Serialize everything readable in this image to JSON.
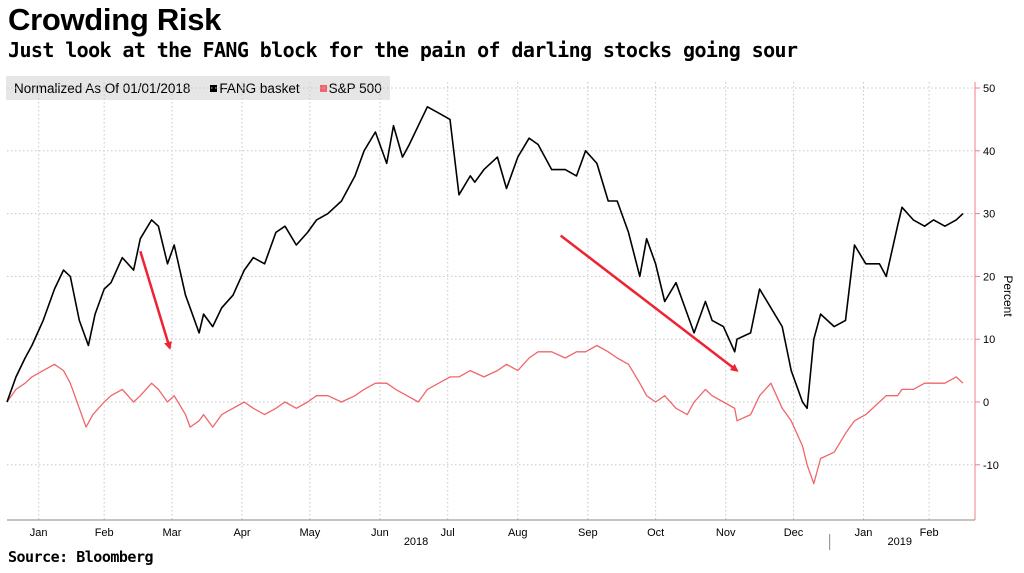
{
  "title": "Crowding Risk",
  "subtitle": "Just look at the FANG block for the pain of darling stocks going sour",
  "legend": {
    "normalized_label": "Normalized As Of 01/01/2018",
    "fang_label": "FANG basket",
    "sp_label": "S&P 500"
  },
  "source": "Source:  Bloomberg",
  "colors": {
    "fang": "#000000",
    "sp": "#f0666a",
    "arrow": "#ee2233",
    "grid": "#c8c8c8",
    "axis": "#f08080"
  },
  "chart_data": {
    "type": "line",
    "title": "Crowding Risk",
    "subtitle": "Just look at the FANG block for the pain of darling stocks going sour",
    "ylabel": "Percent",
    "ylim": [
      -18,
      53
    ],
    "y_ticks": [
      -10,
      0,
      10,
      20,
      30,
      40,
      50
    ],
    "x_range": [
      "2018-01-01",
      "2019-02-28"
    ],
    "month_ticks": [
      {
        "label": "Jan",
        "date": "2018-01-15"
      },
      {
        "label": "Feb",
        "date": "2018-02-13"
      },
      {
        "label": "Mar",
        "date": "2018-03-15"
      },
      {
        "label": "Apr",
        "date": "2018-04-15"
      },
      {
        "label": "May",
        "date": "2018-05-15"
      },
      {
        "label": "Jun",
        "date": "2018-06-15"
      },
      {
        "label": "Jul",
        "date": "2018-07-15"
      },
      {
        "label": "Aug",
        "date": "2018-08-15"
      },
      {
        "label": "Sep",
        "date": "2018-09-15"
      },
      {
        "label": "Oct",
        "date": "2018-10-15"
      },
      {
        "label": "Nov",
        "date": "2018-11-15"
      },
      {
        "label": "Dec",
        "date": "2018-12-15"
      },
      {
        "label": "Jan",
        "date": "2019-01-15"
      },
      {
        "label": "Feb",
        "date": "2019-02-13"
      }
    ],
    "year_labels": [
      {
        "label": "2018",
        "date": "2018-07-01"
      },
      {
        "label": "2019",
        "date": "2019-01-31"
      }
    ],
    "year_divider": "2018-12-31",
    "grid": true,
    "series": [
      {
        "name": "FANG basket",
        "x": [
          "2018-01-01",
          "2018-01-05",
          "2018-01-09",
          "2018-01-12",
          "2018-01-17",
          "2018-01-22",
          "2018-01-26",
          "2018-01-29",
          "2018-02-02",
          "2018-02-06",
          "2018-02-09",
          "2018-02-13",
          "2018-02-16",
          "2018-02-21",
          "2018-02-26",
          "2018-03-01",
          "2018-03-06",
          "2018-03-09",
          "2018-03-13",
          "2018-03-16",
          "2018-03-21",
          "2018-03-23",
          "2018-03-27",
          "2018-03-29",
          "2018-04-02",
          "2018-04-06",
          "2018-04-11",
          "2018-04-16",
          "2018-04-20",
          "2018-04-25",
          "2018-04-30",
          "2018-05-04",
          "2018-05-09",
          "2018-05-14",
          "2018-05-18",
          "2018-05-23",
          "2018-05-29",
          "2018-06-04",
          "2018-06-08",
          "2018-06-13",
          "2018-06-18",
          "2018-06-21",
          "2018-06-25",
          "2018-06-28",
          "2018-07-02",
          "2018-07-06",
          "2018-07-11",
          "2018-07-16",
          "2018-07-20",
          "2018-07-25",
          "2018-07-27",
          "2018-07-31",
          "2018-08-06",
          "2018-08-10",
          "2018-08-15",
          "2018-08-20",
          "2018-08-24",
          "2018-08-30",
          "2018-09-05",
          "2018-09-10",
          "2018-09-14",
          "2018-09-19",
          "2018-09-24",
          "2018-09-28",
          "2018-10-03",
          "2018-10-08",
          "2018-10-11",
          "2018-10-15",
          "2018-10-19",
          "2018-10-24",
          "2018-10-29",
          "2018-11-01",
          "2018-11-06",
          "2018-11-09",
          "2018-11-14",
          "2018-11-19",
          "2018-11-20",
          "2018-11-26",
          "2018-11-30",
          "2018-12-05",
          "2018-12-10",
          "2018-12-14",
          "2018-12-19",
          "2018-12-21",
          "2018-12-24",
          "2018-12-27",
          "2019-01-02",
          "2019-01-07",
          "2019-01-11",
          "2019-01-16",
          "2019-01-22",
          "2019-01-25",
          "2019-01-30",
          "2019-02-01",
          "2019-02-06",
          "2019-02-11",
          "2019-02-15",
          "2019-02-20",
          "2019-02-25",
          "2019-02-28"
        ],
        "values": [
          0,
          4,
          7,
          9,
          13,
          18,
          21,
          20,
          13,
          9,
          14,
          18,
          19,
          23,
          21,
          26,
          29,
          28,
          22,
          25,
          17,
          15,
          11,
          14,
          12,
          15,
          17,
          21,
          23,
          22,
          27,
          28,
          25,
          27,
          29,
          30,
          32,
          36,
          40,
          43,
          38,
          44,
          39,
          41,
          44,
          47,
          46,
          45,
          33,
          36,
          35,
          37,
          39,
          34,
          39,
          42,
          41,
          37,
          37,
          36,
          40,
          38,
          32,
          32,
          27,
          20,
          26,
          22,
          16,
          19,
          14,
          11,
          16,
          13,
          12,
          8,
          10,
          11,
          18,
          15,
          12,
          5,
          0,
          -1,
          10,
          14,
          12,
          13,
          25,
          22,
          22,
          20,
          28,
          31,
          29,
          28,
          29,
          28,
          29,
          30
        ]
      },
      {
        "name": "S&P 500",
        "x": [
          "2018-01-01",
          "2018-01-05",
          "2018-01-09",
          "2018-01-12",
          "2018-01-17",
          "2018-01-22",
          "2018-01-26",
          "2018-01-29",
          "2018-02-02",
          "2018-02-05",
          "2018-02-08",
          "2018-02-13",
          "2018-02-16",
          "2018-02-21",
          "2018-02-26",
          "2018-03-01",
          "2018-03-06",
          "2018-03-09",
          "2018-03-13",
          "2018-03-16",
          "2018-03-21",
          "2018-03-23",
          "2018-03-27",
          "2018-03-29",
          "2018-04-02",
          "2018-04-06",
          "2018-04-11",
          "2018-04-16",
          "2018-04-20",
          "2018-04-25",
          "2018-04-30",
          "2018-05-04",
          "2018-05-09",
          "2018-05-14",
          "2018-05-18",
          "2018-05-23",
          "2018-05-29",
          "2018-06-04",
          "2018-06-08",
          "2018-06-13",
          "2018-06-18",
          "2018-06-22",
          "2018-06-27",
          "2018-07-02",
          "2018-07-06",
          "2018-07-11",
          "2018-07-16",
          "2018-07-20",
          "2018-07-25",
          "2018-07-31",
          "2018-08-06",
          "2018-08-10",
          "2018-08-15",
          "2018-08-20",
          "2018-08-24",
          "2018-08-30",
          "2018-09-05",
          "2018-09-10",
          "2018-09-14",
          "2018-09-19",
          "2018-09-24",
          "2018-09-28",
          "2018-10-03",
          "2018-10-08",
          "2018-10-11",
          "2018-10-15",
          "2018-10-19",
          "2018-10-24",
          "2018-10-29",
          "2018-11-01",
          "2018-11-06",
          "2018-11-09",
          "2018-11-14",
          "2018-11-19",
          "2018-11-20",
          "2018-11-26",
          "2018-11-30",
          "2018-12-05",
          "2018-12-10",
          "2018-12-14",
          "2018-12-19",
          "2018-12-21",
          "2018-12-24",
          "2018-12-27",
          "2019-01-02",
          "2019-01-07",
          "2019-01-11",
          "2019-01-16",
          "2019-01-22",
          "2019-01-25",
          "2019-01-30",
          "2019-02-01",
          "2019-02-06",
          "2019-02-11",
          "2019-02-15",
          "2019-02-20",
          "2019-02-25",
          "2019-02-28"
        ],
        "values": [
          0,
          2,
          3,
          4,
          5,
          6,
          5,
          3,
          -1,
          -4,
          -2,
          0,
          1,
          2,
          0,
          1,
          3,
          2,
          0,
          1,
          -2,
          -4,
          -3,
          -2,
          -4,
          -2,
          -1,
          0,
          -1,
          -2,
          -1,
          0,
          -1,
          0,
          1,
          1,
          0,
          1,
          2,
          3,
          3,
          2,
          1,
          0,
          2,
          3,
          4,
          4,
          5,
          4,
          5,
          6,
          5,
          7,
          8,
          8,
          7,
          8,
          8,
          9,
          8,
          7,
          6,
          3,
          1,
          0,
          1,
          -1,
          -2,
          0,
          2,
          1,
          0,
          -1,
          -3,
          -2,
          1,
          3,
          -1,
          -3,
          -7,
          -10,
          -13,
          -9,
          -8,
          -5,
          -3,
          -2,
          0,
          1,
          1,
          2,
          2,
          3,
          3,
          3,
          4,
          3
        ]
      }
    ]
  },
  "annotations": [
    {
      "from": [
        "2018-03-01",
        24
      ],
      "to": [
        "2018-03-14",
        8.6
      ]
    },
    {
      "from": [
        "2018-09-03",
        26.5
      ],
      "to": [
        "2018-11-20",
        5
      ]
    }
  ]
}
